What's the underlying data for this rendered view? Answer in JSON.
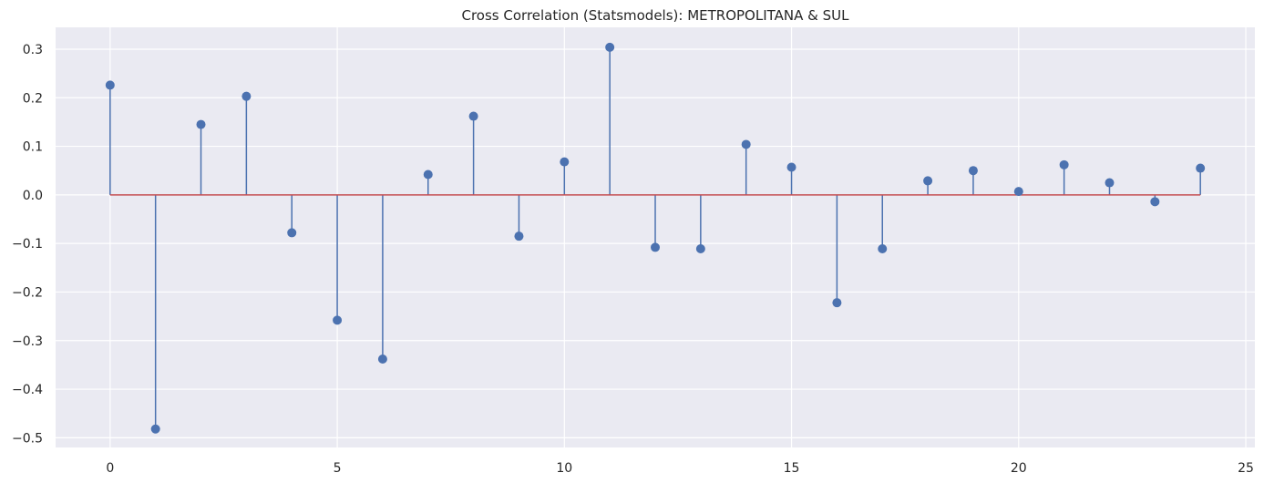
{
  "chart_data": {
    "type": "stem",
    "title": "Cross Correlation (Statsmodels): METROPOLITANA & SUL",
    "xlabel": "",
    "ylabel": "",
    "x": [
      0,
      1,
      2,
      3,
      4,
      5,
      6,
      7,
      8,
      9,
      10,
      11,
      12,
      13,
      14,
      15,
      16,
      17,
      18,
      19,
      20,
      21,
      22,
      23,
      24
    ],
    "values": [
      0.226,
      -0.482,
      0.145,
      0.203,
      -0.078,
      -0.258,
      -0.338,
      0.042,
      0.162,
      -0.085,
      0.068,
      0.304,
      -0.108,
      -0.111,
      0.104,
      0.057,
      -0.222,
      -0.111,
      0.029,
      0.05,
      0.007,
      0.062,
      0.025,
      -0.014,
      0.055
    ],
    "xlim": [
      -1.2,
      25.2
    ],
    "ylim": [
      -0.52,
      0.345
    ],
    "xticks": [
      0,
      5,
      10,
      15,
      20,
      25
    ],
    "yticks": [
      0.3,
      0.2,
      0.1,
      0.0,
      -0.1,
      -0.2,
      -0.3,
      -0.4,
      -0.5
    ],
    "xtick_labels": [
      "0",
      "5",
      "10",
      "15",
      "20",
      "25"
    ],
    "ytick_labels": [
      "0.3",
      "0.2",
      "0.1",
      "0.0",
      "−0.1",
      "−0.2",
      "−0.3",
      "−0.4",
      "−0.5"
    ],
    "grid": true,
    "legend": "none",
    "colors": {
      "background": "#eaeaf2",
      "grid": "#ffffff",
      "stem": "#4c72b0",
      "marker": "#4c72b0",
      "baseline": "#c44e52"
    }
  }
}
